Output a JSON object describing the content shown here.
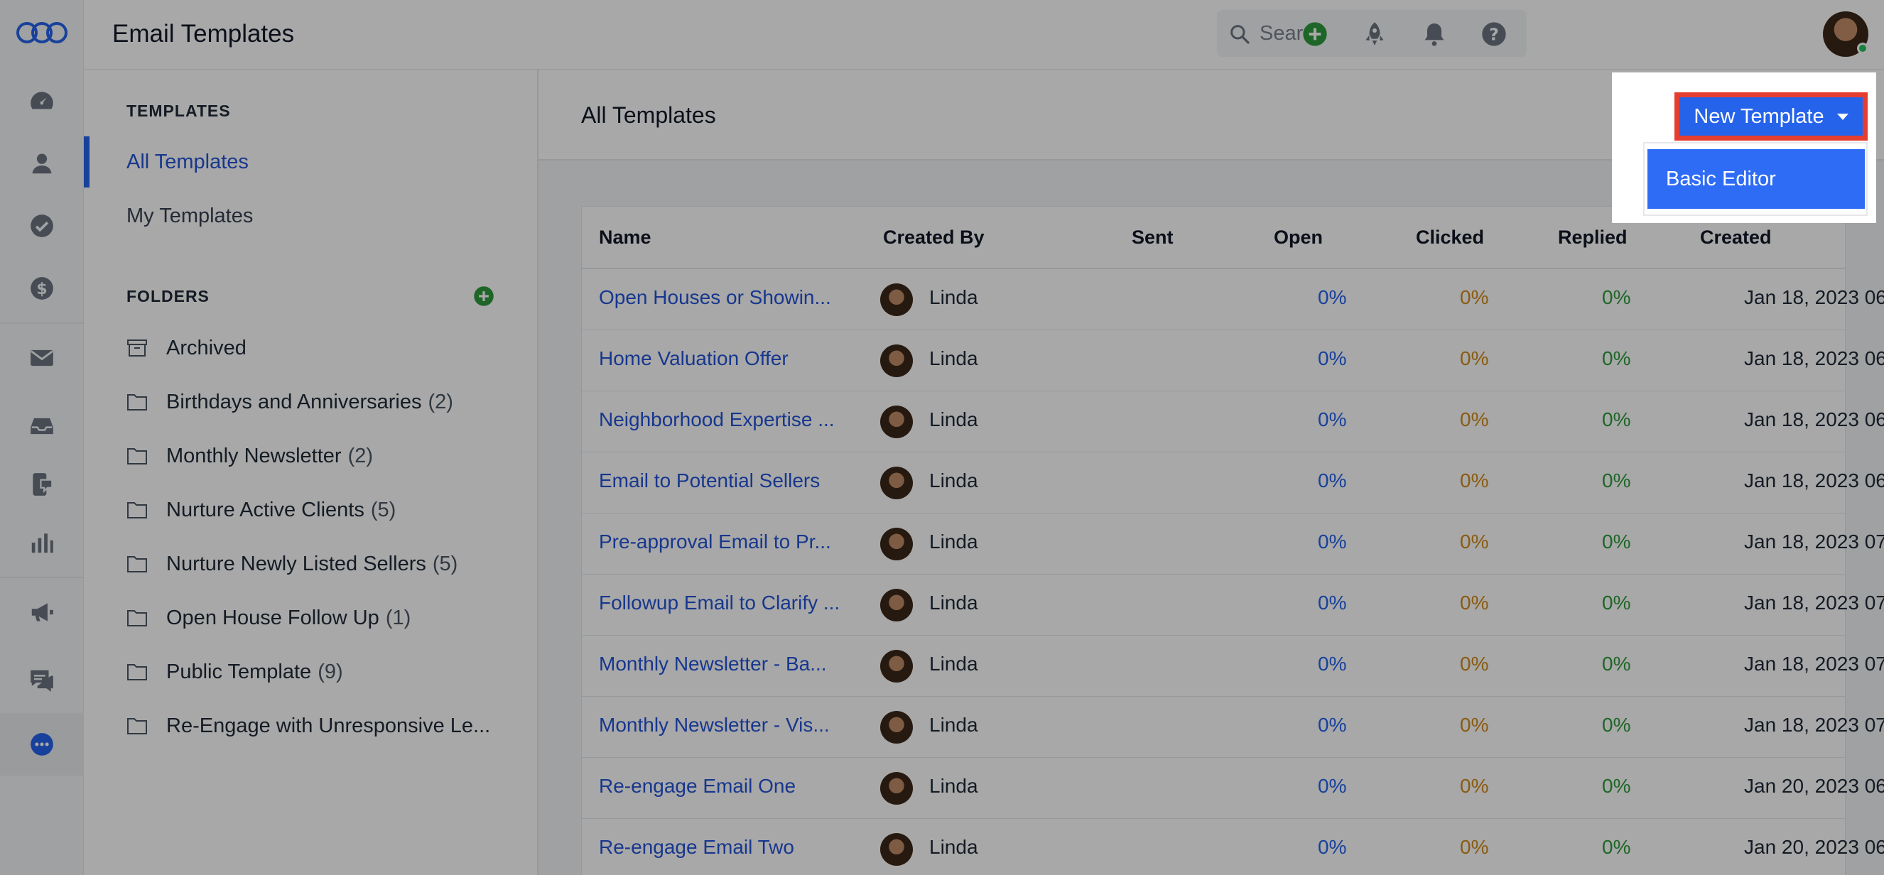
{
  "app": {
    "title": "Email Templates"
  },
  "search": {
    "placeholder": "Search"
  },
  "colors": {
    "accent": "#2563eb",
    "link": "#2454d8",
    "clicked": "#d08a1a",
    "replied": "#2e9c3c",
    "highlight": "#e53e2f"
  },
  "rail": {
    "icons": [
      "logo-icon",
      "dashboard-icon",
      "person-icon",
      "check-circle-icon",
      "dollar-icon",
      "mail-icon",
      "inbox-icon",
      "phone-chat-icon",
      "bar-chart-icon",
      "megaphone-icon",
      "chat-icon",
      "more-icon"
    ]
  },
  "topbar": {
    "icons": [
      "add-icon",
      "rocket-icon",
      "bell-icon",
      "help-icon"
    ]
  },
  "sidebar": {
    "templates_heading": "TEMPLATES",
    "links": [
      {
        "label": "All Templates",
        "active": true
      },
      {
        "label": "My Templates",
        "active": false
      }
    ],
    "folders_heading": "FOLDERS",
    "folders": [
      {
        "name": "Archived",
        "count": "",
        "icon": "archive-icon"
      },
      {
        "name": "Birthdays and Anniversaries",
        "count": "(2)",
        "icon": "folder-icon"
      },
      {
        "name": "Monthly Newsletter",
        "count": "(2)",
        "icon": "folder-icon"
      },
      {
        "name": "Nurture Active Clients",
        "count": "(5)",
        "icon": "folder-icon"
      },
      {
        "name": "Nurture Newly Listed Sellers",
        "count": "(5)",
        "icon": "folder-icon"
      },
      {
        "name": "Open House Follow Up",
        "count": "(1)",
        "icon": "folder-icon"
      },
      {
        "name": "Public Template",
        "count": "(9)",
        "icon": "folder-icon"
      },
      {
        "name": "Re-Engage with Unresponsive Le...",
        "count": "",
        "icon": "folder-icon"
      }
    ]
  },
  "main": {
    "title": "All Templates",
    "new_template_button": "New Template",
    "menu_items": [
      "Basic Editor"
    ]
  },
  "table": {
    "columns": [
      "Name",
      "Created By",
      "Sent",
      "Open",
      "Clicked",
      "Replied",
      "Created"
    ],
    "rows": [
      {
        "name": "Open Houses or Showin...",
        "created_by": "Linda",
        "sent": "",
        "open": "0%",
        "clicked": "0%",
        "replied": "0%",
        "created": "Jan 18, 2023 06"
      },
      {
        "name": "Home Valuation Offer",
        "created_by": "Linda",
        "sent": "",
        "open": "0%",
        "clicked": "0%",
        "replied": "0%",
        "created": "Jan 18, 2023 06"
      },
      {
        "name": "Neighborhood Expertise ...",
        "created_by": "Linda",
        "sent": "",
        "open": "0%",
        "clicked": "0%",
        "replied": "0%",
        "created": "Jan 18, 2023 06"
      },
      {
        "name": "Email to Potential Sellers",
        "created_by": "Linda",
        "sent": "",
        "open": "0%",
        "clicked": "0%",
        "replied": "0%",
        "created": "Jan 18, 2023 06"
      },
      {
        "name": "Pre-approval Email to Pr...",
        "created_by": "Linda",
        "sent": "",
        "open": "0%",
        "clicked": "0%",
        "replied": "0%",
        "created": "Jan 18, 2023 07"
      },
      {
        "name": "Followup Email to Clarify ...",
        "created_by": "Linda",
        "sent": "",
        "open": "0%",
        "clicked": "0%",
        "replied": "0%",
        "created": "Jan 18, 2023 07"
      },
      {
        "name": "Monthly Newsletter - Ba...",
        "created_by": "Linda",
        "sent": "",
        "open": "0%",
        "clicked": "0%",
        "replied": "0%",
        "created": "Jan 18, 2023 07"
      },
      {
        "name": "Monthly Newsletter - Vis...",
        "created_by": "Linda",
        "sent": "",
        "open": "0%",
        "clicked": "0%",
        "replied": "0%",
        "created": "Jan 18, 2023 07"
      },
      {
        "name": "Re-engage Email One",
        "created_by": "Linda",
        "sent": "",
        "open": "0%",
        "clicked": "0%",
        "replied": "0%",
        "created": "Jan 20, 2023 06"
      },
      {
        "name": "Re-engage Email Two",
        "created_by": "Linda",
        "sent": "",
        "open": "0%",
        "clicked": "0%",
        "replied": "0%",
        "created": "Jan 20, 2023 06"
      }
    ]
  }
}
